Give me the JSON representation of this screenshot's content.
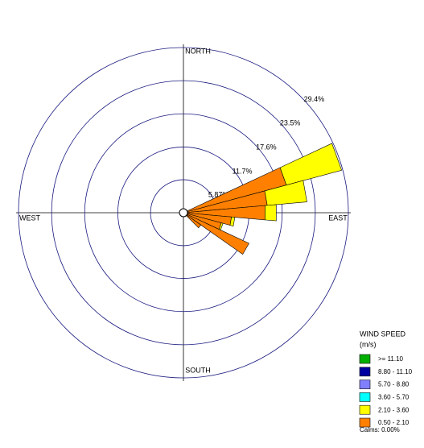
{
  "chart_data": {
    "type": "wind_rose",
    "compass": [
      "NORTH",
      "EAST",
      "SOUTH",
      "WEST"
    ],
    "x": [
      70,
      80,
      90,
      100,
      110,
      120,
      130
    ],
    "series": [
      {
        "name": ">= 11.10",
        "color": "#00b000",
        "values": [
          0,
          0,
          0,
          0,
          0,
          0,
          0
        ]
      },
      {
        "name": "8.80 - 11.10",
        "color": "#0000a0",
        "values": [
          0,
          0,
          0,
          0,
          0,
          0,
          0
        ]
      },
      {
        "name": "5.70 - 8.80",
        "color": "#8080ff",
        "values": [
          0,
          0,
          0,
          0,
          0,
          0,
          0
        ]
      },
      {
        "name": "3.60 - 5.70",
        "color": "#00ffff",
        "values": [
          0,
          0,
          0,
          0,
          0,
          0,
          0
        ]
      },
      {
        "name": "2.10 - 3.60",
        "color": "#ffff00",
        "values": [
          10.2,
          7.1,
          2.0,
          0.6,
          0.3,
          0,
          0
        ]
      },
      {
        "name": "0.50 - 2.10",
        "color": "#ff8000",
        "values": [
          19.0,
          15.0,
          14.6,
          8.6,
          7.0,
          12.9,
          3.8
        ]
      }
    ],
    "rlim": [
      0,
      29.4
    ],
    "rticks": [
      {
        "value": 5.87,
        "label": "5.87%"
      },
      {
        "value": 11.7,
        "label": "11.7%"
      },
      {
        "value": 17.6,
        "label": "17.6%"
      },
      {
        "value": 23.5,
        "label": "23.5%"
      },
      {
        "value": 29.4,
        "label": "29.4%"
      }
    ],
    "legend_title": "WIND SPEED",
    "legend_unit": "(m/s)",
    "calms": "Calms: 0.00%"
  }
}
